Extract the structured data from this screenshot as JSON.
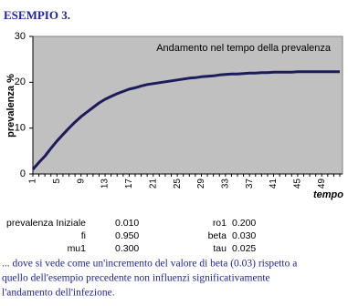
{
  "header": {
    "title": "ESEMPIO 3."
  },
  "chart_data": {
    "type": "line",
    "title": "Andamento nel tempo della prevalenza",
    "y_label": "prevalenza %",
    "x_label": "tempo",
    "categories": [
      "1",
      null,
      null,
      null,
      "5",
      null,
      null,
      null,
      "9",
      null,
      null,
      null,
      "13",
      null,
      null,
      null,
      "17",
      null,
      null,
      null,
      "21",
      null,
      null,
      null,
      "25",
      null,
      null,
      null,
      "29",
      null,
      null,
      null,
      "33",
      null,
      null,
      null,
      "37",
      null,
      null,
      null,
      "41",
      null,
      null,
      null,
      "45",
      null,
      null,
      null,
      "49",
      null,
      null,
      null
    ],
    "series": [
      {
        "name": "prevalenza",
        "color": "#1c1c5c",
        "values": [
          1.0,
          2.5,
          3.9,
          5.6,
          7.2,
          8.6,
          10.0,
          11.3,
          12.5,
          13.5,
          14.5,
          15.5,
          16.3,
          16.9,
          17.5,
          18.0,
          18.5,
          18.8,
          19.2,
          19.5,
          19.7,
          19.9,
          20.1,
          20.3,
          20.5,
          20.7,
          20.9,
          21.0,
          21.2,
          21.3,
          21.4,
          21.6,
          21.7,
          21.8,
          21.8,
          21.9,
          22.0,
          22.0,
          22.1,
          22.1,
          22.2,
          22.2,
          22.2,
          22.2,
          22.3,
          22.3,
          22.3,
          22.3,
          22.3,
          22.3,
          22.3,
          22.3
        ]
      }
    ],
    "ylim": [
      0,
      30
    ],
    "yticks": [
      0,
      10,
      20,
      30
    ],
    "grid": false,
    "plot_background": "#c0c0c0"
  },
  "params": [
    {
      "label": "prevalenza Iniziale",
      "value": "0.010"
    },
    {
      "label": "fi",
      "value": "0.950"
    },
    {
      "label": "mu1",
      "value": "0.300"
    },
    {
      "label": "ro1",
      "value": "0.200"
    },
    {
      "label": "beta",
      "value": "0.030"
    },
    {
      "label": "tau",
      "value": "0.025"
    }
  ],
  "paragraph": [
    "... dove si vede come un'incremento del valore di beta (0.03) rispetto a",
    "quello dell'esempio precedente non influenzi significativamente",
    "l'andamento dell'infezione."
  ]
}
